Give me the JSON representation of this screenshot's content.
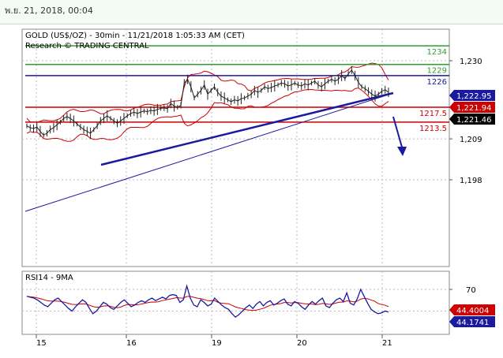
{
  "header": {
    "date_text": "พ.ย. 21, 2018, 00:04"
  },
  "chart_data": {
    "type": "line",
    "title": "GOLD (US$/OZ) - 30min - 11/21/2018 1:05:33 AM (CET)",
    "subtitle": "Research © TRADING CENTRAL",
    "price_ticks": [
      "1,230",
      "1,209",
      "1,198"
    ],
    "x_ticks": [
      "15",
      "16",
      "19",
      "20",
      "21"
    ],
    "levels": [
      {
        "label": "1234",
        "value": 1234,
        "color": "#2e9e2e"
      },
      {
        "label": "1229",
        "value": 1229,
        "color": "#2e9e2e"
      },
      {
        "label": "1226",
        "value": 1226,
        "color": "#1a1aa0"
      },
      {
        "label": "1217.5",
        "value": 1217.5,
        "color": "#cc0000"
      },
      {
        "label": "1213.5",
        "value": 1213.5,
        "color": "#cc0000"
      }
    ],
    "price_badges": [
      {
        "label": "1,222.95",
        "bg": "#1a1aa0",
        "fg": "#ffffff"
      },
      {
        "label": "1,221.94",
        "bg": "#cc0000",
        "fg": "#ffffff"
      },
      {
        "label": "1,221.46",
        "bg": "#000000",
        "fg": "#ffffff"
      }
    ],
    "rsi": {
      "title": "RSI14 - 9MA",
      "ticks": [
        "70"
      ],
      "badges": [
        {
          "label": "44.4004",
          "bg": "#cc0000",
          "fg": "#ffffff"
        },
        {
          "label": "44.1741",
          "bg": "#1a1aa0",
          "fg": "#ffffff"
        }
      ]
    },
    "price_series": [
      1212.5,
      1212,
      1211.8,
      1212.2,
      1211,
      1210,
      1210.5,
      1211.5,
      1212,
      1212.8,
      1213.5,
      1214.5,
      1215,
      1214.5,
      1213.8,
      1213,
      1212.2,
      1211.5,
      1211,
      1210.5,
      1211.5,
      1212.5,
      1213.8,
      1214.5,
      1215.2,
      1214.5,
      1213.8,
      1213.2,
      1213.8,
      1214.5,
      1215.2,
      1215.8,
      1216.2,
      1215.8,
      1216.2,
      1216.5,
      1216.3,
      1216.7,
      1216.5,
      1216.9,
      1217.2,
      1217.3,
      1217.1,
      1218.5,
      1217.8,
      1217.5,
      1218,
      1224,
      1225,
      1223,
      1220,
      1221,
      1222,
      1223.5,
      1221,
      1222,
      1223,
      1221.5,
      1220.5,
      1220,
      1219.5,
      1219,
      1219.5,
      1219.2,
      1219.8,
      1220,
      1220.5,
      1221,
      1222,
      1221.5,
      1222,
      1223,
      1222.5,
      1222.8,
      1223.2,
      1223.5,
      1224,
      1223.8,
      1223.2,
      1223.5,
      1224,
      1223.5,
      1223.2,
      1223.8,
      1223.5,
      1224,
      1224.5,
      1223.5,
      1223,
      1223.8,
      1224.5,
      1225,
      1224.5,
      1225,
      1226,
      1225.2,
      1226.5,
      1227.5,
      1226,
      1224.2,
      1223,
      1222.5,
      1221.8,
      1221,
      1220.5,
      1221,
      1221.8,
      1222.2,
      1221.5
    ],
    "rsi_series": [
      62,
      61,
      60,
      58,
      55,
      52,
      50,
      54,
      58,
      60,
      56,
      52,
      48,
      45,
      50,
      54,
      58,
      55,
      48,
      42,
      45,
      50,
      55,
      53,
      49,
      47,
      51,
      55,
      58,
      54,
      50,
      52,
      55,
      57,
      55,
      58,
      60,
      57,
      59,
      61,
      59,
      63,
      64,
      63,
      55,
      58,
      74,
      60,
      52,
      50,
      58,
      55,
      51,
      53,
      60,
      56,
      52,
      49,
      47,
      42,
      38,
      41,
      45,
      49,
      52,
      48,
      53,
      56,
      51,
      55,
      57,
      52,
      54,
      57,
      59,
      53,
      51,
      56,
      54,
      50,
      47,
      52,
      56,
      53,
      57,
      60,
      51,
      49,
      54,
      58,
      60,
      56,
      66,
      54,
      52,
      59,
      70,
      62,
      54,
      47,
      44,
      42,
      43,
      45,
      44
    ]
  }
}
